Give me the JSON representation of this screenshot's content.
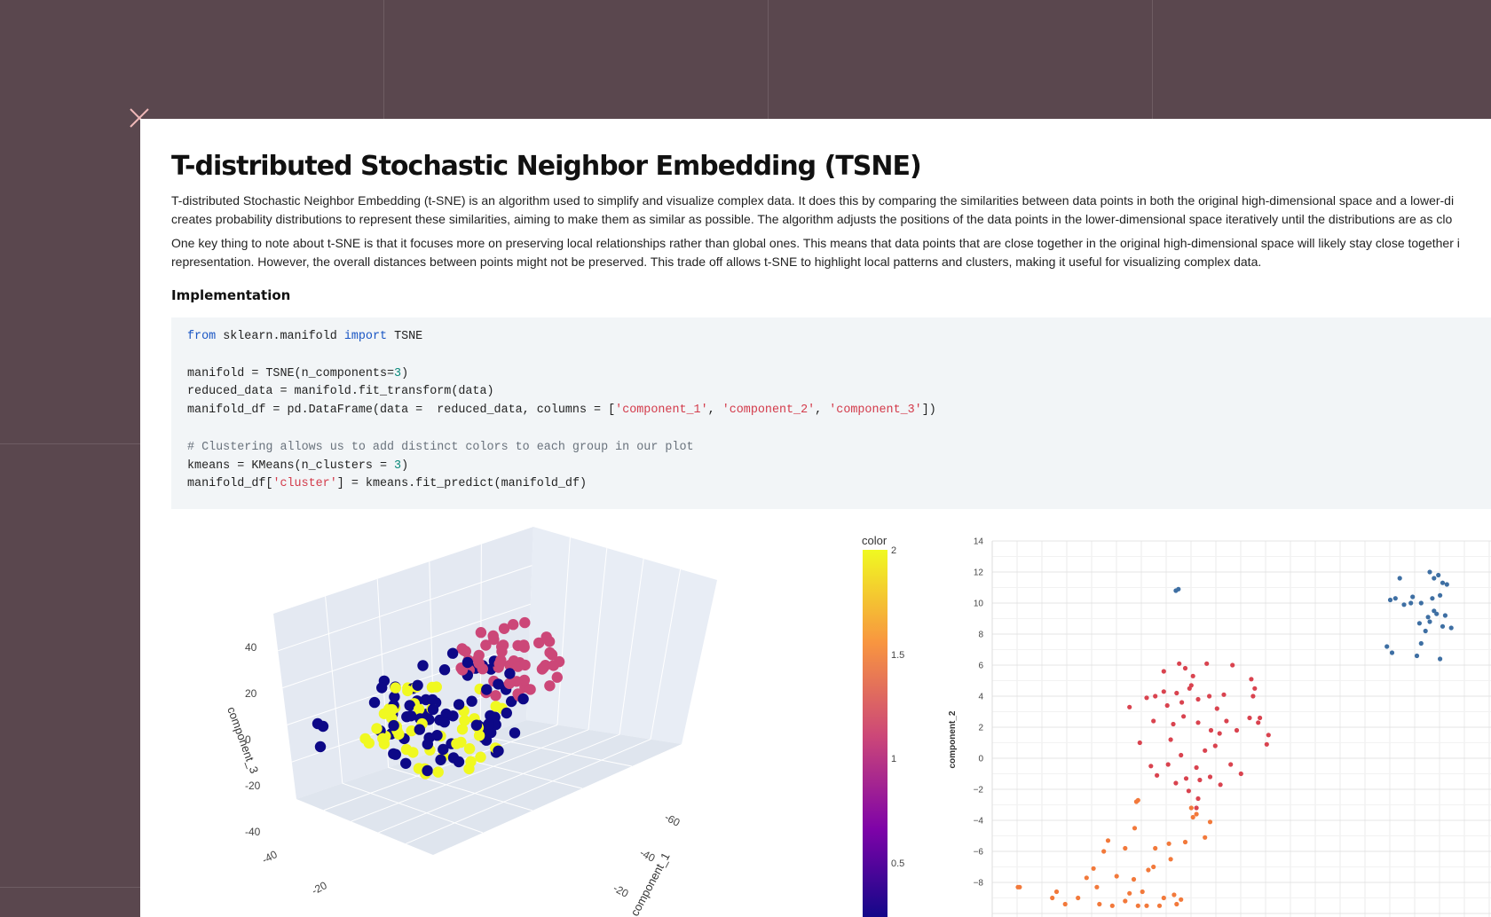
{
  "window": {
    "close_icon": "close-icon"
  },
  "doc": {
    "title": "T-distributed Stochastic Neighbor Embedding (TSNE)",
    "para1_line1": "T-distributed Stochastic Neighbor Embedding (t-SNE) is an algorithm used to simplify and visualize complex data. It does this by comparing the similarities between data points in both the original high-dimensional space and a lower-di",
    "para1_line2": "creates probability distributions to represent these similarities, aiming to make them as similar as possible. The algorithm adjusts the positions of the data points in the lower-dimensional space iteratively until the distributions are as clo",
    "para2_line1": "One key thing to note about t-SNE is that it focuses more on preserving local relationships rather than global ones. This means that data points that are close together in the original high-dimensional space will likely stay close together i",
    "para2_line2": "representation. However, the overall distances between points might not be preserved. This trade off allows t-SNE to highlight local patterns and clusters, making it useful for visualizing complex data.",
    "implementation_heading": "Implementation"
  },
  "code": {
    "l1_kw1": "from",
    "l1_mid": " sklearn.manifold ",
    "l1_kw2": "import",
    "l1_end": " TSNE",
    "l3_a": "manifold = TSNE(n_components=",
    "l3_num": "3",
    "l3_b": ")",
    "l4": "reduced_data = manifold.fit_transform(data)",
    "l5_a": "manifold_df = pd.DataFrame(data =  reduced_data, columns = [",
    "l5_s1": "'component_1'",
    "l5_c1": ", ",
    "l5_s2": "'component_2'",
    "l5_c2": ", ",
    "l5_s3": "'component_3'",
    "l5_b": "])",
    "l7": "# Clustering allows us to add distinct colors to each group in our plot",
    "l8_a": "kmeans = KMeans(n_clusters = ",
    "l8_num": "3",
    "l8_b": ")",
    "l9_a": "manifold_df[",
    "l9_s": "'cluster'",
    "l9_b": "] = kmeans.fit_predict(manifold_df)"
  },
  "chart_data": [
    {
      "type": "scatter",
      "subtype": "3d-scatter",
      "zlabel": "component_3",
      "xlabel": "component_1",
      "z_ticks": [
        "40",
        "20",
        "0",
        "-20",
        "-40"
      ],
      "x_ticks": [
        "-60",
        "-40",
        "-20"
      ],
      "y_ticks": [
        "-40",
        "-20"
      ],
      "colorscale": "plasma",
      "series": [
        {
          "values_count_note": "",
          "color": "#f0f921"
        },
        {
          "color": "#cc4778"
        },
        {
          "color": "#0d0887"
        }
      ]
    },
    {
      "type": "colorbar",
      "title": "color",
      "ticks": [
        "2",
        "1.5",
        "1",
        "0.5"
      ],
      "range": [
        0,
        2
      ]
    },
    {
      "type": "scatter",
      "ylabel": "component_2",
      "y_ticks": [
        14,
        12,
        10,
        8,
        6,
        4,
        2,
        0,
        -2,
        -4,
        -6,
        -8
      ],
      "ylim": [
        -10,
        14
      ],
      "xlim": [
        -25,
        35
      ],
      "series": [
        {
          "color": "#3e6fa3",
          "points": [
            [
              26,
              12
            ],
            [
              26.5,
              11.6
            ],
            [
              27,
              11.8
            ],
            [
              27.5,
              11.3
            ],
            [
              28,
              11.2
            ],
            [
              27.2,
              10.5
            ],
            [
              26.3,
              10.3
            ],
            [
              25,
              10
            ],
            [
              24,
              10.4
            ],
            [
              23.8,
              10
            ],
            [
              23,
              9.9
            ],
            [
              22.5,
              11.6
            ],
            [
              22,
              10.3
            ],
            [
              21.4,
              10.2
            ],
            [
              26,
              8.8
            ],
            [
              26.5,
              9.5
            ],
            [
              27.5,
              8.5
            ],
            [
              27.8,
              9.2
            ],
            [
              28.5,
              8.4
            ],
            [
              25.5,
              8.2
            ],
            [
              25,
              7.4
            ],
            [
              24.5,
              6.6
            ],
            [
              21,
              7.2
            ],
            [
              21.6,
              6.8
            ],
            [
              27.2,
              6.4
            ],
            [
              24.8,
              8.7
            ],
            [
              25.8,
              9.1
            ],
            [
              26.8,
              9.3
            ],
            [
              -3.6,
              10.8
            ],
            [
              -3.3,
              10.9
            ]
          ]
        },
        {
          "color": "#d9434f",
          "points": [
            [
              -9,
              3.3
            ],
            [
              -7,
              3.9
            ],
            [
              -6,
              4
            ],
            [
              -5,
              4.3
            ],
            [
              -4.6,
              3.4
            ],
            [
              -3.5,
              4.2
            ],
            [
              -2,
              4.5
            ],
            [
              -1.6,
              5.3
            ],
            [
              -1,
              3.8
            ],
            [
              0,
              6.1
            ],
            [
              -3.2,
              6.1
            ],
            [
              -5,
              5.6
            ],
            [
              -2.5,
              5.8
            ],
            [
              -1.8,
              4.7
            ],
            [
              -2.9,
              3.6
            ],
            [
              0.3,
              4
            ],
            [
              1.2,
              3.2
            ],
            [
              2,
              4.1
            ],
            [
              3,
              6
            ],
            [
              2.3,
              2.4
            ],
            [
              1.5,
              1.6
            ],
            [
              0.5,
              1.8
            ],
            [
              -1,
              2.3
            ],
            [
              -2.7,
              2.7
            ],
            [
              -3.9,
              2.2
            ],
            [
              -4.2,
              1.2
            ],
            [
              -6.2,
              2.4
            ],
            [
              -7.8,
              1
            ],
            [
              -4.5,
              -0.4
            ],
            [
              -5.8,
              -1.1
            ],
            [
              -3.6,
              -1.6
            ],
            [
              -2.4,
              -1.3
            ],
            [
              -1.2,
              -0.6
            ],
            [
              -0.8,
              -1.4
            ],
            [
              0.4,
              -1.2
            ],
            [
              1.6,
              -1.7
            ],
            [
              2.8,
              -0.4
            ],
            [
              -1,
              -2.6
            ],
            [
              -1.2,
              -3.2
            ],
            [
              -2.1,
              -2.1
            ],
            [
              5,
              2.6
            ],
            [
              5.4,
              4
            ],
            [
              5.6,
              4.5
            ],
            [
              5.2,
              5.1
            ],
            [
              6.2,
              2.6
            ],
            [
              7,
              0.9
            ],
            [
              7.2,
              1.5
            ],
            [
              4,
              -1
            ],
            [
              6,
              2.3
            ],
            [
              3.5,
              1.8
            ],
            [
              -0.2,
              0.5
            ],
            [
              1,
              0.8
            ],
            [
              -3,
              0.2
            ],
            [
              -6.5,
              -0.5
            ]
          ]
        },
        {
          "color": "#f2793b",
          "points": [
            [
              -22,
              -8.3
            ],
            [
              -21.8,
              -8.3
            ],
            [
              -18,
              -9
            ],
            [
              -17.5,
              -8.6
            ],
            [
              -16.5,
              -9.4
            ],
            [
              -15,
              -9
            ],
            [
              -14,
              -7.7
            ],
            [
              -13.2,
              -7.1
            ],
            [
              -12.8,
              -8.3
            ],
            [
              -12.5,
              -9.4
            ],
            [
              -12,
              -6
            ],
            [
              -11.5,
              -5.3
            ],
            [
              -11,
              -9.5
            ],
            [
              -10.5,
              -7.6
            ],
            [
              -9.5,
              -9.2
            ],
            [
              -9,
              -8.7
            ],
            [
              -8.5,
              -7.8
            ],
            [
              -8,
              -9.5
            ],
            [
              -7.5,
              -8.6
            ],
            [
              -7,
              -9.5
            ],
            [
              -6.8,
              -7.2
            ],
            [
              -6.2,
              -7
            ],
            [
              -5.5,
              -9.5
            ],
            [
              -5,
              -9
            ],
            [
              -4.2,
              -6.5
            ],
            [
              -3.8,
              -8.8
            ],
            [
              -3.5,
              -9.4
            ],
            [
              -3,
              -9.1
            ],
            [
              -2.5,
              -5.4
            ],
            [
              -1.8,
              -3.2
            ],
            [
              -1.6,
              -3.8
            ],
            [
              -1.2,
              -3.6
            ],
            [
              -8.4,
              -4.5
            ],
            [
              -8.2,
              -2.8
            ],
            [
              -8,
              -2.7
            ],
            [
              -4.4,
              -5.5
            ],
            [
              -0.2,
              -5.1
            ],
            [
              0.4,
              -4.1
            ],
            [
              -9.5,
              -5.8
            ],
            [
              -6,
              -5.8
            ]
          ]
        }
      ]
    }
  ]
}
